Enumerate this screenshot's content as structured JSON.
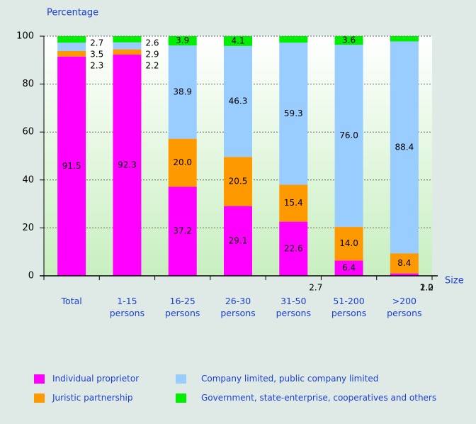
{
  "chart_data": {
    "type": "stacked_bar",
    "ylabel": "Percentage",
    "xlabel": "Size",
    "categories": [
      "Total",
      "1-15 persons",
      "16-25 persons",
      "26-30 persons",
      "31-50 persons",
      "51-200 persons",
      ">200 persons"
    ],
    "series": [
      {
        "name": "Individual proprietor",
        "color": "#ff00ff",
        "values": [
          91.5,
          92.3,
          37.2,
          29.1,
          22.6,
          6.4,
          1.0
        ],
        "value_labels": [
          "91.5",
          "92.3",
          "37.2",
          "29.1",
          "22.6",
          "6.4",
          "1.0"
        ]
      },
      {
        "name": "Juristic partnership",
        "color": "#ff9900",
        "values": [
          2.3,
          2.2,
          20.0,
          20.5,
          15.4,
          14.0,
          8.4
        ],
        "value_labels": [
          "2.3",
          "2.2",
          "20.0",
          "20.5",
          "15.4",
          "14.0",
          "8.4"
        ]
      },
      {
        "name": "Company limited, public company limited",
        "color": "#99ccff",
        "values": [
          3.5,
          2.9,
          38.9,
          46.3,
          59.3,
          76.0,
          88.4
        ],
        "value_labels": [
          "3.5",
          "2.9",
          "38.9",
          "46.3",
          "59.3",
          "76.0",
          "88.4"
        ]
      },
      {
        "name": "Government, state-enterprise, cooperatives and others",
        "color": "#00ee00",
        "values": [
          2.7,
          2.6,
          3.9,
          4.1,
          2.7,
          3.6,
          2.2
        ],
        "value_labels": [
          "2.7",
          "2.6",
          "3.9",
          "4.1",
          "2.7",
          "3.6",
          "2.2"
        ]
      }
    ],
    "ylim": [
      0,
      100
    ],
    "yticks": [
      0,
      20,
      40,
      60,
      80,
      100
    ],
    "grid": true,
    "legend": "bottom"
  }
}
